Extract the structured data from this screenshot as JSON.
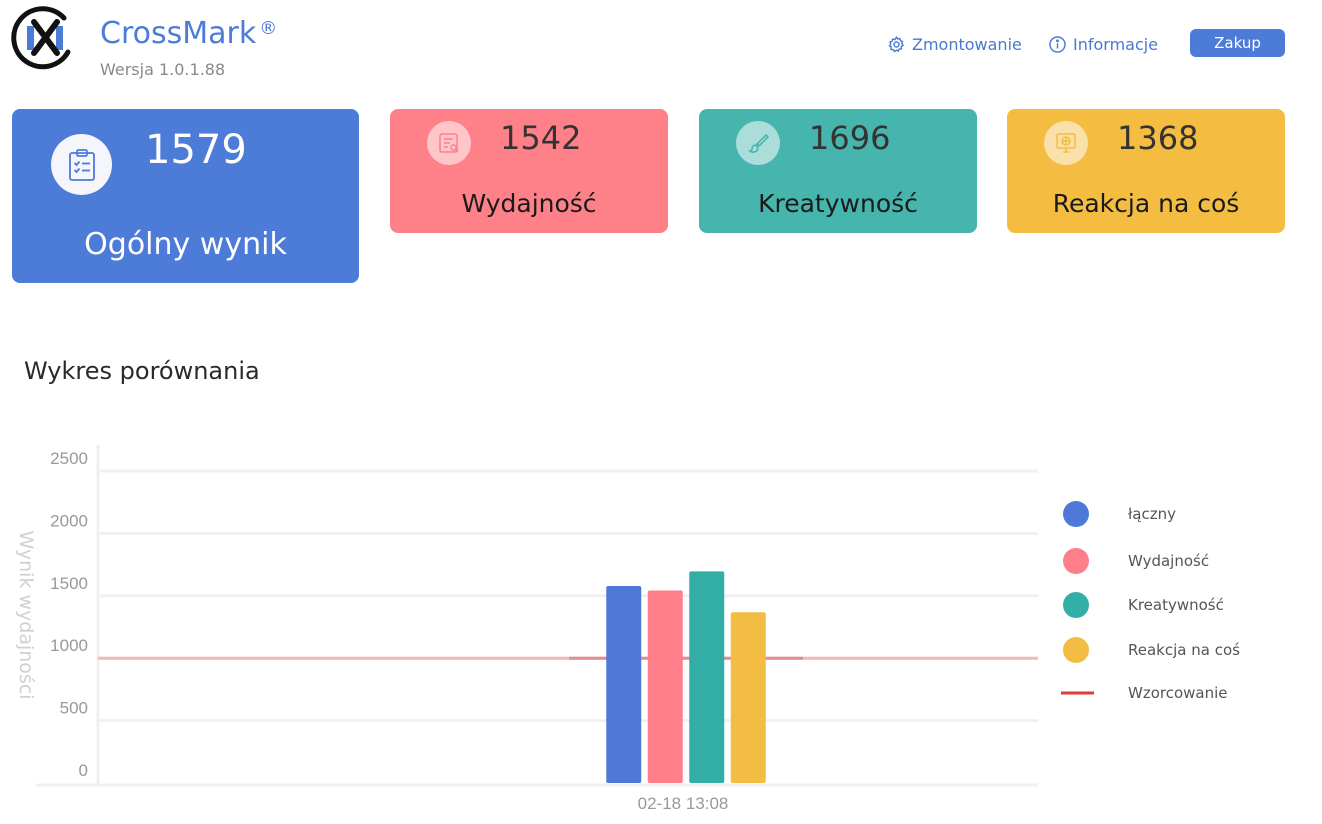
{
  "header": {
    "app_name": "CrossMark",
    "registered_mark": "®",
    "version": "Wersja 1.0.1.88",
    "nav": {
      "settings_label": "Zmontowanie",
      "info_label": "Informacje",
      "buy_label": "Zakup"
    }
  },
  "cards": {
    "total": {
      "value": "1579",
      "label": "Ogólny wynik",
      "color": "#4d7bd8",
      "icon": "clipboard-checklist-icon"
    },
    "performance": {
      "value": "1542",
      "label": "Wydajność",
      "color": "#fe8089",
      "icon": "document-search-icon"
    },
    "creativity": {
      "value": "1696",
      "label": "Kreatywność",
      "color": "#46b5ad",
      "icon": "paintbrush-icon"
    },
    "reaction": {
      "value": "1368",
      "label": "Reakcja na coś",
      "color": "#f4bd42",
      "icon": "monitor-globe-icon"
    }
  },
  "comparison": {
    "title": "Wykres porównania"
  },
  "chart_data": {
    "type": "bar",
    "categories": [
      "02-18 13:08"
    ],
    "series": [
      {
        "name": "łączny",
        "values": [
          1579
        ],
        "color": "#4f79d8"
      },
      {
        "name": "Wydajność",
        "values": [
          1542
        ],
        "color": "#fe7f8a"
      },
      {
        "name": "Kreatywność",
        "values": [
          1696
        ],
        "color": "#33aea7"
      },
      {
        "name": "Reakcja na coś",
        "values": [
          1368
        ],
        "color": "#f3bc43"
      }
    ],
    "reference_line": {
      "name": "Wzorcowanie",
      "value": 1000,
      "color": "#e03a3a"
    },
    "ylabel": "Wynik wydajności",
    "xlabel": "",
    "yticks": [
      0,
      500,
      1000,
      1500,
      2000,
      2500
    ],
    "ylim": [
      0,
      2500
    ],
    "grid": true,
    "legend_position": "right"
  }
}
